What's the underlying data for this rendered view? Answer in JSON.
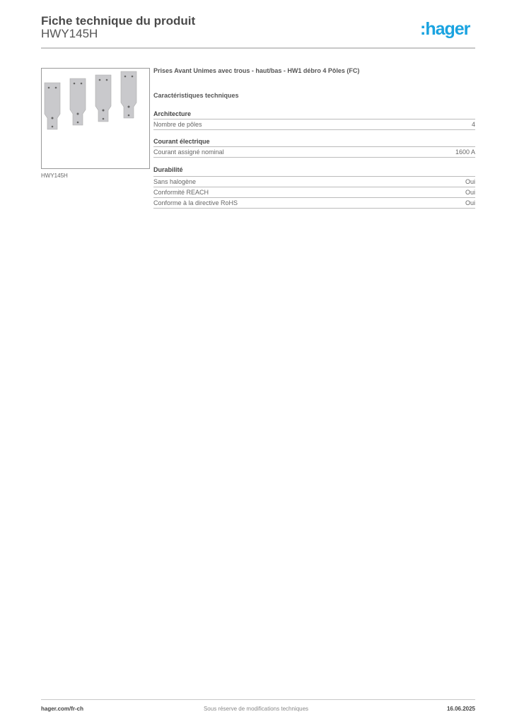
{
  "header": {
    "title": "Fiche technique du produit",
    "product_code": "HWY145H",
    "logo": "hager",
    "brand_color": "#1aa3e0"
  },
  "image": {
    "caption": "HWY145H",
    "icon": "product-busbar-connectors"
  },
  "product": {
    "description": "Prises Avant Unimes avec trous - haut/bas - HW1 débro 4 Pôles (FC)"
  },
  "specs": {
    "heading": "Caractéristiques techniques",
    "groups": [
      {
        "name": "Architecture",
        "rows": [
          {
            "label": "Nombre de pôles",
            "value": "4"
          }
        ]
      },
      {
        "name": "Courant électrique",
        "rows": [
          {
            "label": "Courant assigné nominal",
            "value": "1600 A"
          }
        ]
      },
      {
        "name": "Durabilité",
        "rows": [
          {
            "label": "Sans halogène",
            "value": "Oui"
          },
          {
            "label": "Conformité REACH",
            "value": "Oui"
          },
          {
            "label": "Conforme à la directive RoHS",
            "value": "Oui"
          }
        ]
      }
    ]
  },
  "footer": {
    "website": "hager.com/fr-ch",
    "notice": "Sous réserve de modifications techniques",
    "date": "16.06.2025"
  }
}
